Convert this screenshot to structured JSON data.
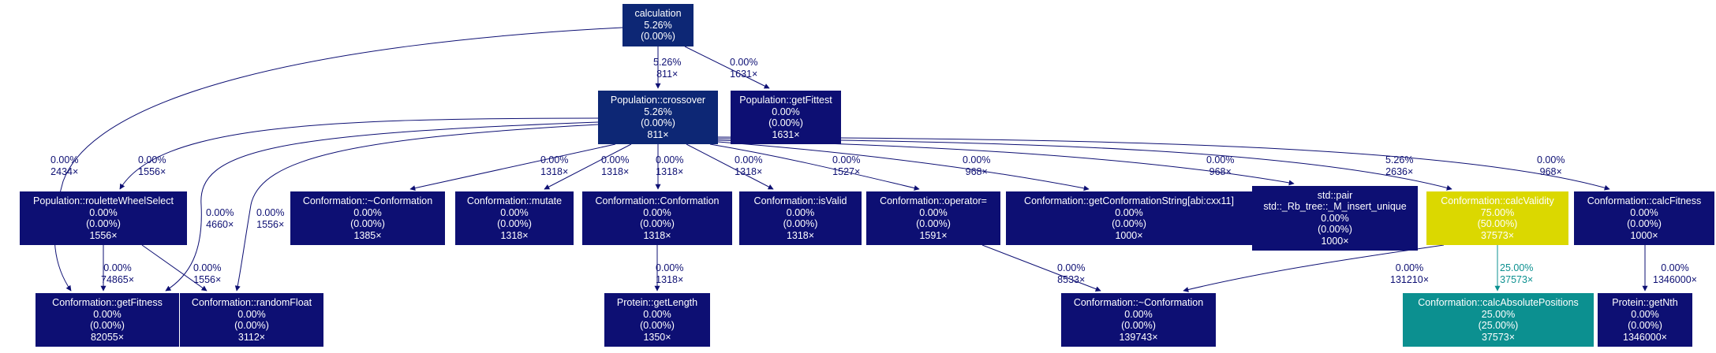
{
  "colors": {
    "node_default": "#0d0f73",
    "node_dark_blue": "#0d2775",
    "node_yellow": "#dbd800",
    "node_teal": "#0c9090",
    "edge_default": "#0d0f73",
    "edge_teal": "#0c9090",
    "text_on_node": "#ffffff"
  },
  "nodes": {
    "calculation": {
      "lines": [
        "calculation",
        "5.26%",
        "(0.00%)"
      ]
    },
    "crossover": {
      "lines": [
        "Population::crossover",
        "5.26%",
        "(0.00%)",
        "811×"
      ]
    },
    "getFittest": {
      "lines": [
        "Population::getFittest",
        "0.00%",
        "(0.00%)",
        "1631×"
      ]
    },
    "rouletteWheelSelect": {
      "lines": [
        "Population::rouletteWheelSelect",
        "0.00%",
        "(0.00%)",
        "1556×"
      ]
    },
    "dtorConformation": {
      "lines": [
        "Conformation::~Conformation",
        "0.00%",
        "(0.00%)",
        "1385×"
      ]
    },
    "mutate": {
      "lines": [
        "Conformation::mutate",
        "0.00%",
        "(0.00%)",
        "1318×"
      ]
    },
    "ctorConformation": {
      "lines": [
        "Conformation::Conformation",
        "0.00%",
        "(0.00%)",
        "1318×"
      ]
    },
    "isValid": {
      "lines": [
        "Conformation::isValid",
        "0.00%",
        "(0.00%)",
        "1318×"
      ]
    },
    "operatorAssign": {
      "lines": [
        "Conformation::operator=",
        "0.00%",
        "(0.00%)",
        "1591×"
      ]
    },
    "getConformationString": {
      "lines": [
        "Conformation::getConformationString[abi:cxx11]",
        "0.00%",
        "(0.00%)",
        "1000×"
      ]
    },
    "rbTreeInsert": {
      "lines": [
        "std::pair",
        "std::_Rb_tree::_M_insert_unique",
        "0.00%",
        "(0.00%)",
        "1000×"
      ]
    },
    "calcValidity": {
      "lines": [
        "Conformation::calcValidity",
        "75.00%",
        "(50.00%)",
        "37573×"
      ]
    },
    "calcFitness": {
      "lines": [
        "Conformation::calcFitness",
        "0.00%",
        "(0.00%)",
        "1000×"
      ]
    },
    "getFitness": {
      "lines": [
        "Conformation::getFitness",
        "0.00%",
        "(0.00%)",
        "82055×"
      ]
    },
    "randomFloat": {
      "lines": [
        "Conformation::randomFloat",
        "0.00%",
        "(0.00%)",
        "3112×"
      ]
    },
    "getLength": {
      "lines": [
        "Protein::getLength",
        "0.00%",
        "(0.00%)",
        "1350×"
      ]
    },
    "dtorConformation2": {
      "lines": [
        "Conformation::~Conformation",
        "0.00%",
        "(0.00%)",
        "139743×"
      ]
    },
    "calcAbsolutePositions": {
      "lines": [
        "Conformation::calcAbsolutePositions",
        "25.00%",
        "(25.00%)",
        "37573×"
      ]
    },
    "getNth": {
      "lines": [
        "Protein::getNth",
        "0.00%",
        "(0.00%)",
        "1346000×"
      ]
    }
  },
  "edges": {
    "calculation_crossover": {
      "pct": "5.26%",
      "count": "811×"
    },
    "calculation_getFittest": {
      "pct": "0.00%",
      "count": "1631×"
    },
    "calculation_getFitness": {
      "pct": "0.00%",
      "count": "2434×"
    },
    "crossover_rouletteWheelSelect": {
      "pct": "0.00%",
      "count": "1556×"
    },
    "crossover_getFitness": {
      "pct": "0.00%",
      "count": "4660×"
    },
    "crossover_randomFloat": {
      "pct": "0.00%",
      "count": "1556×"
    },
    "crossover_dtorConformation": {
      "pct": "0.00%",
      "count": "1318×"
    },
    "crossover_mutate": {
      "pct": "0.00%",
      "count": "1318×"
    },
    "crossover_ctorConformation": {
      "pct": "0.00%",
      "count": "1318×"
    },
    "crossover_isValid": {
      "pct": "0.00%",
      "count": "1318×"
    },
    "crossover_operatorAssign": {
      "pct": "0.00%",
      "count": "1527×"
    },
    "crossover_getConformationString": {
      "pct": "0.00%",
      "count": "968×"
    },
    "crossover_rbTreeInsert": {
      "pct": "0.00%",
      "count": "968×"
    },
    "crossover_calcValidity": {
      "pct": "5.26%",
      "count": "2636×"
    },
    "crossover_calcFitness": {
      "pct": "0.00%",
      "count": "968×"
    },
    "rouletteWheelSelect_getFitness": {
      "pct": "0.00%",
      "count": "74865×"
    },
    "rouletteWheelSelect_randomFloat": {
      "pct": "0.00%",
      "count": "1556×"
    },
    "ctorConformation_getLength": {
      "pct": "0.00%",
      "count": "1318×"
    },
    "operatorAssign_dtorConformation2": {
      "pct": "0.00%",
      "count": "8533×"
    },
    "calcValidity_dtorConformation2": {
      "pct": "0.00%",
      "count": "131210×"
    },
    "calcValidity_calcAbsolutePositions": {
      "pct": "25.00%",
      "count": "37573×"
    },
    "calcFitness_getNth": {
      "pct": "0.00%",
      "count": "1346000×"
    }
  }
}
